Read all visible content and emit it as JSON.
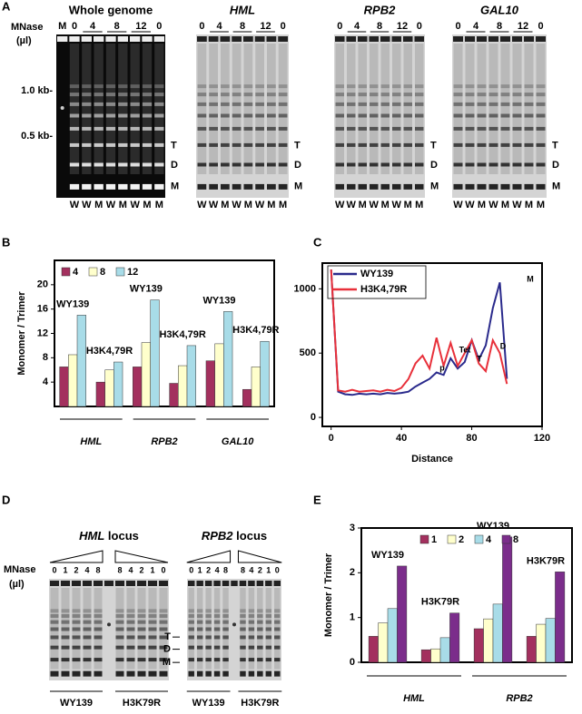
{
  "panel_labels": [
    "A",
    "B",
    "C",
    "D",
    "E"
  ],
  "panel_a": {
    "mnase_label": "MNase",
    "unit_label": "(µl)",
    "gels": [
      {
        "title": "Whole genome",
        "dose_labels": [
          "M",
          "0",
          "4",
          "8",
          "12",
          "0"
        ],
        "lane_labels": [
          "W",
          "W",
          "M",
          "W",
          "M",
          "W",
          "M",
          "M"
        ],
        "size_labels": [
          "1.0 kb-",
          "0.5 kb-"
        ],
        "band_labels": [
          "T",
          "D",
          "M"
        ]
      },
      {
        "title": "HML",
        "dose_labels": [
          "0",
          "4",
          "8",
          "12",
          "0"
        ],
        "lane_labels": [
          "W",
          "W",
          "M",
          "W",
          "M",
          "W",
          "M",
          "M"
        ],
        "band_labels": [
          "T",
          "D",
          "M"
        ]
      },
      {
        "title": "RPB2",
        "dose_labels": [
          "0",
          "4",
          "8",
          "12",
          "0"
        ],
        "lane_labels": [
          "W",
          "W",
          "M",
          "W",
          "M",
          "W",
          "M",
          "M"
        ],
        "band_labels": [
          "T",
          "D",
          "M"
        ]
      },
      {
        "title": "GAL10",
        "dose_labels": [
          "0",
          "4",
          "8",
          "12",
          "0"
        ],
        "lane_labels": [
          "W",
          "W",
          "M",
          "W",
          "M",
          "W",
          "M",
          "M"
        ],
        "band_labels": [
          "T",
          "D",
          "M"
        ]
      }
    ]
  },
  "panel_d": {
    "mnase_label": "MNase",
    "unit_label": "(µl)",
    "band_labels": [
      "T",
      "D",
      "M"
    ],
    "gels": [
      {
        "gene": "HML",
        "suffix": "locus",
        "dose_labels": [
          "0",
          "1",
          "2",
          "4",
          "8",
          "8",
          "4",
          "2",
          "1",
          "0"
        ],
        "strains": [
          "WY139",
          "H3K79R"
        ]
      },
      {
        "gene": "RPB2",
        "suffix": "locus",
        "dose_labels": [
          "0",
          "1",
          "2",
          "4",
          "8",
          "8",
          "4",
          "2",
          "1",
          "0"
        ],
        "strains": [
          "WY139",
          "H3K79R"
        ]
      }
    ]
  },
  "chart_data": [
    {
      "type": "bar",
      "y_label": "Monomer / Trimer",
      "groups": [
        "HML",
        "RPB2",
        "GAL10"
      ],
      "categories": [
        "WY139",
        "H3K4,79R",
        "WY139",
        "H3K4,79R",
        "WY139",
        "H3K4,79R"
      ],
      "series": [
        {
          "name": "4",
          "color": "#a3305e",
          "values": [
            6.5,
            4,
            6.5,
            3.8,
            7.5,
            2.8
          ]
        },
        {
          "name": "8",
          "color": "#ffffcc",
          "values": [
            8.5,
            6,
            10.5,
            6.7,
            10.3,
            6.5
          ]
        },
        {
          "name": "12",
          "color": "#a8dce8",
          "values": [
            15,
            7.3,
            17.5,
            10,
            15.6,
            10.7
          ]
        }
      ],
      "ylim": [
        0,
        24
      ],
      "yticks": [
        4,
        8,
        12,
        16,
        20
      ]
    },
    {
      "type": "line",
      "x_label": "Distance",
      "x": [
        0,
        4,
        8,
        12,
        16,
        20,
        24,
        28,
        32,
        36,
        40,
        44,
        48,
        52,
        56,
        60,
        64,
        68,
        72,
        76,
        80,
        84,
        88,
        92,
        96,
        100
      ],
      "series": [
        {
          "name": "WY139",
          "color": "#2a2a8c",
          "values": [
            1150,
            200,
            180,
            175,
            185,
            180,
            185,
            180,
            190,
            185,
            190,
            200,
            240,
            270,
            300,
            350,
            330,
            460,
            380,
            430,
            600,
            450,
            560,
            850,
            1050,
            300
          ]
        },
        {
          "name": "H3K4,79R",
          "color": "#e8303a",
          "values": [
            1150,
            210,
            200,
            215,
            200,
            205,
            210,
            200,
            215,
            205,
            230,
            300,
            420,
            480,
            380,
            620,
            400,
            580,
            400,
            500,
            600,
            420,
            360,
            600,
            500,
            260
          ]
        }
      ],
      "annotations": [
        "p",
        "Tet",
        "T",
        "D",
        "M"
      ],
      "xlim": [
        -5,
        120
      ],
      "xticks": [
        0,
        40,
        80,
        120
      ],
      "ylim": [
        -70,
        1200
      ],
      "yticks": [
        0,
        500,
        1000
      ]
    },
    {
      "type": "bar",
      "y_label": "Monomer / Trimer",
      "groups": [
        "HML",
        "RPB2"
      ],
      "categories": [
        "WY139",
        "H3K79R",
        "WY139",
        "H3K79R"
      ],
      "series": [
        {
          "name": "1",
          "color": "#a3305e",
          "values": [
            0.58,
            0.28,
            0.75,
            0.58
          ]
        },
        {
          "name": "2",
          "color": "#ffffcc",
          "values": [
            0.88,
            0.3,
            0.97,
            0.85
          ]
        },
        {
          "name": "4",
          "color": "#a8dce8",
          "values": [
            1.2,
            0.55,
            1.3,
            0.98
          ]
        },
        {
          "name": "8",
          "color": "#7b2d8b",
          "values": [
            2.15,
            1.1,
            2.8,
            2.02
          ]
        }
      ],
      "ylim": [
        0,
        3
      ],
      "yticks": [
        0,
        1,
        2,
        3
      ]
    }
  ]
}
